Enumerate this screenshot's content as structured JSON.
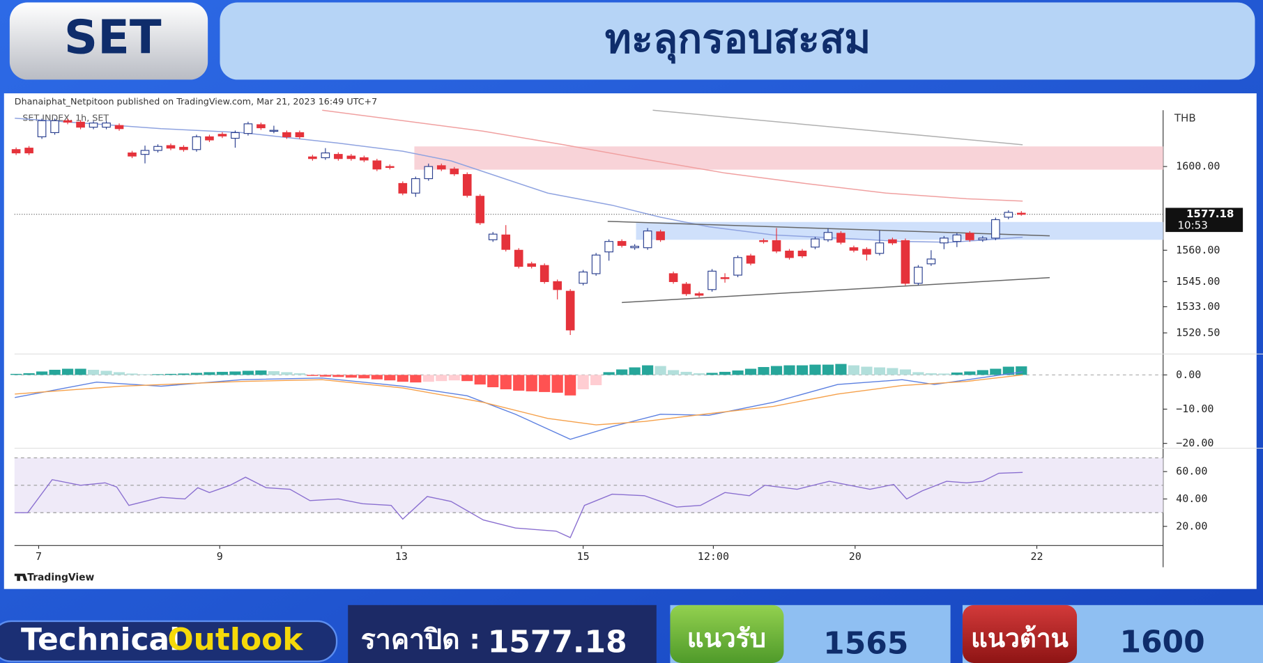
{
  "header": {
    "badge": "SET",
    "title": "ทะลุกรอบสะสม"
  },
  "chart_data": {
    "type": "candlestick",
    "publisher": "Dhanaiphat_Netpitoon published on TradingView.com, Mar 21, 2023 16:49 UTC+7",
    "symbol": "SET INDEX, 1h, SET",
    "currency": "THB",
    "brand": "TradingView",
    "last_price": 1577.18,
    "countdown": "10:53",
    "up_color": "#ffffff",
    "up_border": "#2a3f8f",
    "down_color": "#e5323b",
    "xlim": [
      -0.125,
      89
    ],
    "xticks": [
      {
        "value": 1.75,
        "label": "7"
      },
      {
        "value": 15.8,
        "label": "9"
      },
      {
        "value": 29.9,
        "label": "13"
      },
      {
        "value": 44,
        "label": "15"
      },
      {
        "value": 54.1,
        "label": "12:00"
      },
      {
        "value": 65.1,
        "label": "20"
      },
      {
        "value": 79.2,
        "label": "22"
      }
    ],
    "ylim": [
      1510.4,
      1626.9
    ],
    "yticks": [
      {
        "value": 1600,
        "label": "1600.00"
      },
      {
        "value": 1560,
        "label": "1560.00"
      },
      {
        "value": 1545,
        "label": "1545.00"
      },
      {
        "value": 1533,
        "label": "1533.00"
      },
      {
        "value": 1520.5,
        "label": "1520.50"
      }
    ],
    "ohlc": [
      [
        1608.1,
        1609.1,
        1605.5,
        1606.5
      ],
      [
        1608.8,
        1609.8,
        1605.5,
        1606.5
      ],
      [
        1614.2,
        1622.9,
        1613.2,
        1621.9
      ],
      [
        1616.2,
        1622.9,
        1615.2,
        1621.9
      ],
      [
        1621.9,
        1622.9,
        1620.2,
        1621.2
      ],
      [
        1621.2,
        1622.2,
        1617.8,
        1618.8
      ],
      [
        1618.8,
        1621.8,
        1617.8,
        1620.8
      ],
      [
        1618.8,
        1621.8,
        1617.8,
        1620.8
      ],
      [
        1619.6,
        1620.6,
        1617.1,
        1618.1
      ],
      [
        1606.5,
        1607.5,
        1604.0,
        1605.0
      ],
      [
        1605.8,
        1610.0,
        1601.5,
        1607.7
      ],
      [
        1607.7,
        1610.6,
        1606.7,
        1609.6
      ],
      [
        1610.0,
        1611.0,
        1607.8,
        1608.8
      ],
      [
        1609.2,
        1610.2,
        1607.1,
        1608.1
      ],
      [
        1608.1,
        1615.2,
        1607.1,
        1614.2
      ],
      [
        1614.2,
        1615.2,
        1611.7,
        1612.7
      ],
      [
        1615.4,
        1616.4,
        1613.6,
        1614.6
      ],
      [
        1613.5,
        1617.2,
        1609.0,
        1616.2
      ],
      [
        1615.8,
        1621.4,
        1614.8,
        1620.4
      ],
      [
        1620.0,
        1621.0,
        1617.5,
        1618.5
      ],
      [
        1616.9,
        1619.5,
        1615.9,
        1617.3
      ],
      [
        1616.2,
        1617.2,
        1613.2,
        1614.2
      ],
      [
        1616.2,
        1617.2,
        1613.2,
        1614.2
      ],
      [
        1604.6,
        1605.6,
        1602.8,
        1603.8
      ],
      [
        1604.2,
        1608.8,
        1603.2,
        1606.5
      ],
      [
        1605.8,
        1606.8,
        1602.8,
        1603.8
      ],
      [
        1605.0,
        1606.0,
        1602.8,
        1603.8
      ],
      [
        1604.2,
        1605.2,
        1602.1,
        1603.1
      ],
      [
        1602.7,
        1603.7,
        1597.8,
        1598.8
      ],
      [
        1600.0,
        1601.0,
        1598.6,
        1599.6
      ],
      [
        1591.9,
        1592.9,
        1586.3,
        1587.3
      ],
      [
        1587.3,
        1595.2,
        1585.5,
        1594.2
      ],
      [
        1594.2,
        1601.4,
        1593.2,
        1600.0
      ],
      [
        1600.4,
        1601.4,
        1597.8,
        1598.8
      ],
      [
        1598.8,
        1599.8,
        1595.5,
        1596.5
      ],
      [
        1596.2,
        1597.2,
        1585.2,
        1586.2
      ],
      [
        1585.8,
        1586.8,
        1572.1,
        1573.1
      ],
      [
        1565.0,
        1568.7,
        1564.0,
        1567.7
      ],
      [
        1567.3,
        1572.0,
        1559.4,
        1560.4
      ],
      [
        1560.0,
        1561.0,
        1551.3,
        1552.3
      ],
      [
        1553.5,
        1554.5,
        1551.3,
        1552.3
      ],
      [
        1552.7,
        1553.7,
        1544.0,
        1545.0
      ],
      [
        1545.0,
        1546.0,
        1536.5,
        1541.2
      ],
      [
        1540.4,
        1541.4,
        1519.5,
        1521.9
      ],
      [
        1544.2,
        1550.6,
        1543.2,
        1549.6
      ],
      [
        1548.8,
        1558.7,
        1547.8,
        1557.7
      ],
      [
        1559.2,
        1565.2,
        1555.0,
        1564.2
      ],
      [
        1564.2,
        1565.2,
        1561.3,
        1562.3
      ],
      [
        1561.2,
        1562.9,
        1560.2,
        1561.9
      ],
      [
        1561.2,
        1570.6,
        1560.2,
        1569.2
      ],
      [
        1568.8,
        1569.8,
        1564.0,
        1565.0
      ],
      [
        1548.8,
        1549.8,
        1544.0,
        1545.0
      ],
      [
        1543.8,
        1544.8,
        1538.2,
        1539.2
      ],
      [
        1539.2,
        1540.2,
        1537.5,
        1538.5
      ],
      [
        1541.2,
        1551.0,
        1540.2,
        1550.0
      ],
      [
        1546.9,
        1549.0,
        1544.5,
        1546.5
      ],
      [
        1548.1,
        1557.5,
        1547.1,
        1556.5
      ],
      [
        1557.3,
        1558.3,
        1552.8,
        1553.8
      ],
      [
        1564.6,
        1565.6,
        1563.2,
        1564.2
      ],
      [
        1564.6,
        1570.6,
        1558.6,
        1559.6
      ],
      [
        1559.6,
        1560.6,
        1555.5,
        1556.5
      ],
      [
        1559.6,
        1560.6,
        1556.3,
        1557.3
      ],
      [
        1561.5,
        1566.4,
        1560.5,
        1565.4
      ],
      [
        1565.0,
        1570.5,
        1564.0,
        1568.5
      ],
      [
        1568.1,
        1569.1,
        1562.8,
        1563.8
      ],
      [
        1561.2,
        1562.2,
        1559.0,
        1560.0
      ],
      [
        1560.4,
        1561.4,
        1555.1,
        1558.1
      ],
      [
        1558.5,
        1569.5,
        1557.5,
        1563.5
      ],
      [
        1565.0,
        1566.0,
        1562.5,
        1563.5
      ],
      [
        1564.6,
        1565.6,
        1543.2,
        1544.2
      ],
      [
        1544.2,
        1552.9,
        1543.2,
        1551.9
      ],
      [
        1553.5,
        1560.0,
        1552.5,
        1555.8
      ],
      [
        1563.5,
        1566.8,
        1560.5,
        1565.8
      ],
      [
        1564.2,
        1568.3,
        1561.5,
        1567.3
      ],
      [
        1568.1,
        1569.1,
        1564.0,
        1565.0
      ],
      [
        1565.0,
        1566.8,
        1564.0,
        1565.8
      ],
      [
        1565.8,
        1575.6,
        1564.8,
        1574.6
      ],
      [
        1575.8,
        1579.1,
        1574.8,
        1578.1
      ],
      [
        1577.7,
        1578.7,
        1576.5,
        1577.18
      ]
    ],
    "zones": [
      {
        "x": [
          30.9,
          89
        ],
        "y": [
          1598.5,
          1609.6
        ],
        "color": "#f8d3d8"
      },
      {
        "x": [
          48.1,
          89
        ],
        "y": [
          1565.0,
          1573.5
        ],
        "color": "#cfe0fb"
      }
    ],
    "overlays": [
      {
        "color": "#8fa3e0",
        "x": [
          -0.1,
          11.25,
          17.5,
          25,
          30,
          33.75,
          37.5,
          41.25,
          46.25,
          50,
          53.75,
          58.75,
          63.75,
          68.75,
          72.5,
          78.1
        ],
        "values": [
          1623.1,
          1618.1,
          1616.2,
          1611.2,
          1607.3,
          1602.7,
          1595.0,
          1587.3,
          1581.5,
          1575.8,
          1571.2,
          1567.3,
          1565.8,
          1564.2,
          1563.8,
          1566.2
        ]
      },
      {
        "color": "#f0a0a0",
        "x": [
          23.75,
          30,
          36.25,
          42.5,
          48.75,
          55,
          61.25,
          67.5,
          73.75,
          78.1
        ],
        "values": [
          1626.9,
          1621.9,
          1616.9,
          1610.4,
          1603.5,
          1596.9,
          1591.9,
          1587.3,
          1584.6,
          1583.5
        ]
      },
      {
        "color": "#b0b0b0",
        "x": [
          49.4,
          78.1
        ],
        "values": [
          1626.9,
          1610.4
        ]
      },
      {
        "color": "#666666",
        "x": [
          45.9,
          80.2
        ],
        "values": [
          1573.8,
          1566.9
        ]
      },
      {
        "color": "#666666",
        "x": [
          47,
          80.2
        ],
        "values": [
          1535.0,
          1546.9
        ]
      }
    ],
    "macd": {
      "ylim": [
        -21.4,
        6.1
      ],
      "yticks": [
        {
          "value": 0,
          "label": "0.00"
        },
        {
          "value": -10,
          "label": "−10.00"
        },
        {
          "value": -20,
          "label": "−20.00"
        }
      ],
      "histogram_colors": [
        "#26a69a",
        "#b2dfdb",
        "#ff5252",
        "#ffcdd2"
      ],
      "histogram": [
        0.3,
        0.5,
        1.0,
        1.5,
        1.8,
        1.8,
        1.5,
        1.2,
        0.8,
        0.4,
        0.2,
        0.2,
        0.3,
        0.4,
        0.6,
        0.8,
        0.9,
        1.0,
        1.2,
        1.3,
        1.1,
        0.8,
        0.5,
        -0.3,
        -0.5,
        -0.6,
        -0.8,
        -1.0,
        -1.3,
        -1.6,
        -2.0,
        -2.2,
        -2.0,
        -1.8,
        -1.6,
        -1.8,
        -2.8,
        -3.6,
        -4.2,
        -4.6,
        -4.8,
        -5.0,
        -5.2,
        -6.0,
        -4.2,
        -3.0,
        0.8,
        1.6,
        2.2,
        2.8,
        2.6,
        1.4,
        0.9,
        0.5,
        0.6,
        0.9,
        1.3,
        1.8,
        2.3,
        2.6,
        2.8,
        2.8,
        3.0,
        3.0,
        3.2,
        2.8,
        2.4,
        2.2,
        2.0,
        1.6,
        0.8,
        0.5,
        0.4,
        0.7,
        1.0,
        1.4,
        1.8,
        2.4,
        2.5
      ],
      "lines": [
        {
          "color": "#5b7fe0",
          "x": [
            -0.1,
            6.25,
            11.25,
            17.5,
            23.75,
            30,
            35,
            38.75,
            43,
            46.25,
            50,
            53.75,
            58.75,
            63.75,
            68.75,
            71.25,
            78.1
          ],
          "values": [
            -6.6,
            -2.1,
            -3.3,
            -1.4,
            -0.9,
            -3.3,
            -6.1,
            -11.5,
            -18.8,
            -15.1,
            -11.5,
            -11.8,
            -8.0,
            -2.8,
            -1.4,
            -2.8,
            0.9
          ]
        },
        {
          "color": "#f5a04a",
          "x": [
            -0.1,
            8.125,
            17.5,
            23.75,
            30,
            36.25,
            41.25,
            45,
            48.75,
            53.75,
            58.75,
            63.75,
            68.75,
            73.75,
            78.1
          ],
          "values": [
            -5.6,
            -3.3,
            -1.9,
            -1.4,
            -3.8,
            -8.0,
            -12.7,
            -14.6,
            -13.6,
            -11.3,
            -9.2,
            -5.6,
            -3.1,
            -1.9,
            0
          ]
        }
      ]
    },
    "rsi": {
      "ylim": [
        6,
        77.1
      ],
      "yticks": [
        {
          "value": 60,
          "label": "60.00"
        },
        {
          "value": 40,
          "label": "40.00"
        },
        {
          "value": 20,
          "label": "20.00"
        }
      ],
      "levels": [
        30,
        50,
        70
      ],
      "color": "#8a6fd0",
      "x": [
        -0.1,
        0.9,
        2.8,
        5,
        6.9,
        7.8,
        8.75,
        11.25,
        13.1,
        14.1,
        15,
        16.6,
        17.8,
        19.4,
        21.25,
        22.8,
        25,
        26.9,
        29.1,
        30,
        31.9,
        33.75,
        36.25,
        38.75,
        41.9,
        43,
        44.1,
        46.25,
        48.75,
        51.25,
        53.1,
        55,
        56.9,
        58.1,
        60.6,
        63.1,
        66.25,
        68.1,
        69.1,
        70.3,
        72.2,
        73.75,
        75,
        76.25,
        78.1
      ],
      "values": [
        30.0,
        30.0,
        54.1,
        50.0,
        51.8,
        48.8,
        35.3,
        41.2,
        40.0,
        48.2,
        44.7,
        50.0,
        55.9,
        48.2,
        47.1,
        38.8,
        40.0,
        36.5,
        35.3,
        25.3,
        41.8,
        38.2,
        24.7,
        18.8,
        16.5,
        11.8,
        35.3,
        43.5,
        42.4,
        34.1,
        35.3,
        44.7,
        42.4,
        50.0,
        47.1,
        52.9,
        47.1,
        50.6,
        40.0,
        45.9,
        52.9,
        51.8,
        52.9,
        58.8,
        59.4
      ]
    }
  },
  "footer": {
    "technical": "Technical",
    "outlook": "Outlook",
    "close_label": "ราคาปิด :",
    "close": 1577.18,
    "support_label": "แนวรับ",
    "support": 1565,
    "resistance_label": "แนวต้าน",
    "resistance": 1600
  }
}
